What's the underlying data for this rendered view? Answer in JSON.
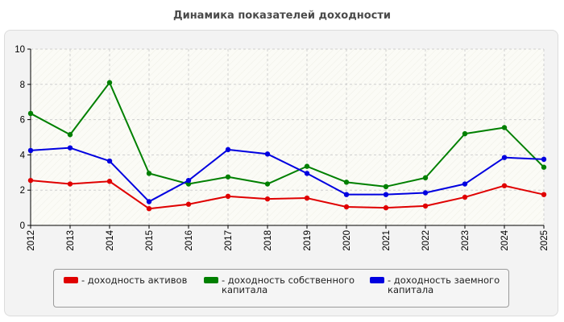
{
  "title": "Динамика показателей доходности",
  "chart_data": {
    "type": "line",
    "title": "Динамика показателей доходности",
    "xlabel": "",
    "ylabel": "",
    "x": [
      "2012",
      "2013",
      "2014",
      "2015",
      "2016",
      "2017",
      "2018",
      "2019",
      "2020",
      "2021",
      "2022",
      "2023",
      "2024",
      "2025"
    ],
    "ylim": [
      0,
      10
    ],
    "yticks": [
      "0",
      "2",
      "4",
      "6",
      "8",
      "10"
    ],
    "grid": true,
    "legend_position": "bottom",
    "series": [
      {
        "name": "- доходность активов",
        "color": "#e00000",
        "values": [
          2.55,
          2.35,
          2.5,
          0.95,
          1.2,
          1.65,
          1.5,
          1.55,
          1.05,
          1.0,
          1.1,
          1.6,
          2.25,
          1.75
        ]
      },
      {
        "name": "- доходность собственного капитала",
        "color": "#008000",
        "values": [
          6.35,
          5.15,
          8.1,
          2.95,
          2.35,
          2.75,
          2.35,
          3.35,
          2.45,
          2.2,
          2.7,
          5.2,
          5.55,
          3.3
        ]
      },
      {
        "name": "- доходность заемного капитала",
        "color": "#0000e0",
        "values": [
          4.25,
          4.4,
          3.65,
          1.35,
          2.55,
          4.3,
          4.05,
          2.95,
          1.75,
          1.75,
          1.85,
          2.35,
          3.85,
          3.75
        ]
      }
    ]
  }
}
